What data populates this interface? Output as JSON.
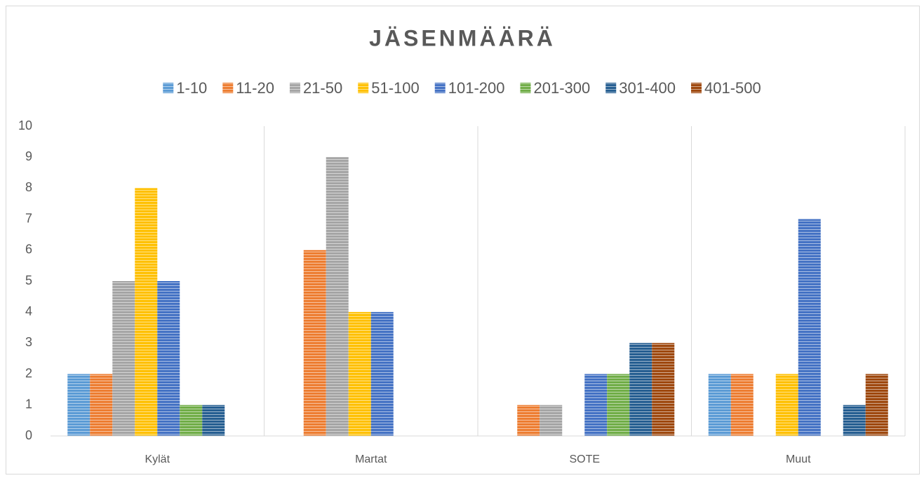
{
  "chart_data": {
    "type": "bar",
    "title": "JÄSENMÄÄRÄ",
    "categories": [
      "Kylät",
      "Martat",
      "SOTE",
      "Muut"
    ],
    "series": [
      {
        "name": "1-10",
        "color": "#5b9bd5",
        "values": [
          2,
          0,
          0,
          2
        ]
      },
      {
        "name": "11-20",
        "color": "#ed7d31",
        "values": [
          2,
          6,
          1,
          2
        ]
      },
      {
        "name": "21-50",
        "color": "#a5a5a5",
        "values": [
          5,
          9,
          1,
          0
        ]
      },
      {
        "name": "51-100",
        "color": "#ffc000",
        "values": [
          8,
          4,
          0,
          2
        ]
      },
      {
        "name": "101-200",
        "color": "#4472c4",
        "values": [
          5,
          4,
          2,
          7
        ]
      },
      {
        "name": "201-300",
        "color": "#70ad47",
        "values": [
          1,
          0,
          2,
          0
        ]
      },
      {
        "name": "301-400",
        "color": "#255e91",
        "values": [
          1,
          0,
          3,
          1
        ]
      },
      {
        "name": "401-500",
        "color": "#9e480e",
        "values": [
          0,
          0,
          3,
          2
        ]
      }
    ],
    "ylim": [
      0,
      10
    ],
    "yticks": [
      0,
      1,
      2,
      3,
      4,
      5,
      6,
      7,
      8,
      9,
      10
    ],
    "legend": "top"
  }
}
